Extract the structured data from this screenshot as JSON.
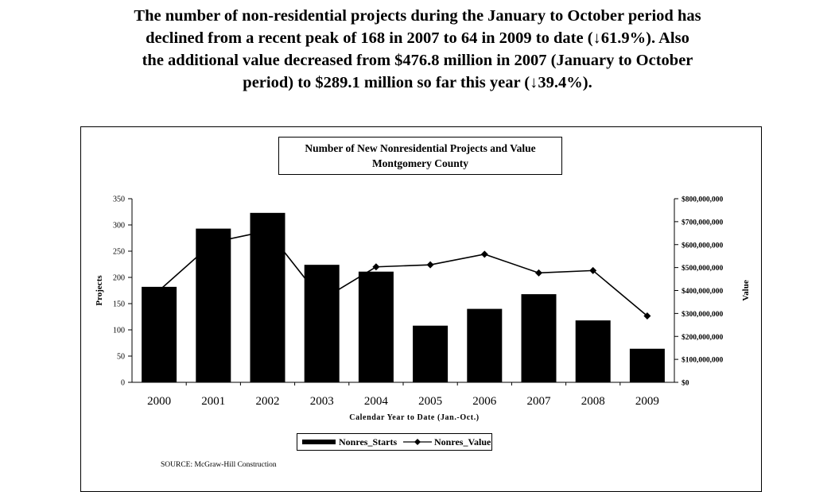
{
  "intro": {
    "paragraph": [
      "The number of non-residential projects during the January to October period has",
      "declined from a recent peak of 168 in 2007 to 64 in 2009 to date (↓61.9%).  Also",
      "the additional value decreased from $476.8 million in 2007 (January to October",
      "period) to $289.1 million so far this year (↓39.4%)."
    ]
  },
  "chart_data": {
    "type": "bar",
    "title": "Number of New Nonresidential Projects and Value",
    "subtitle": "Montgomery County",
    "xlabel": "Calendar Year to Date (Jan.-Oct.)",
    "ylabel": "Projects",
    "y2label": "Value",
    "categories": [
      "2000",
      "2001",
      "2002",
      "2003",
      "2004",
      "2005",
      "2006",
      "2007",
      "2008",
      "2009"
    ],
    "ylim": [
      0,
      350
    ],
    "y_ticks": [
      0,
      50,
      100,
      150,
      200,
      250,
      300,
      350
    ],
    "y2lim": [
      0,
      800000000
    ],
    "y2_tick_labels": [
      "$0",
      "$100,000,000",
      "$200,000,000",
      "$300,000,000",
      "$400,000,000",
      "$500,000,000",
      "$600,000,000",
      "$700,000,000",
      "$800,000,000"
    ],
    "series": [
      {
        "name": "Nonres_Starts",
        "type": "bar",
        "axis": "left",
        "values": [
          182,
          293,
          323,
          224,
          211,
          108,
          140,
          168,
          118,
          64
        ]
      },
      {
        "name": "Nonres_Value",
        "type": "line",
        "axis": "right",
        "values": [
          400000000,
          610000000,
          660000000,
          360000000,
          503000000,
          512000000,
          558000000,
          476800000,
          487000000,
          289100000
        ]
      }
    ],
    "legend_position": "bottom",
    "grid": false
  },
  "source": "SOURCE:  McGraw-Hill Construction"
}
